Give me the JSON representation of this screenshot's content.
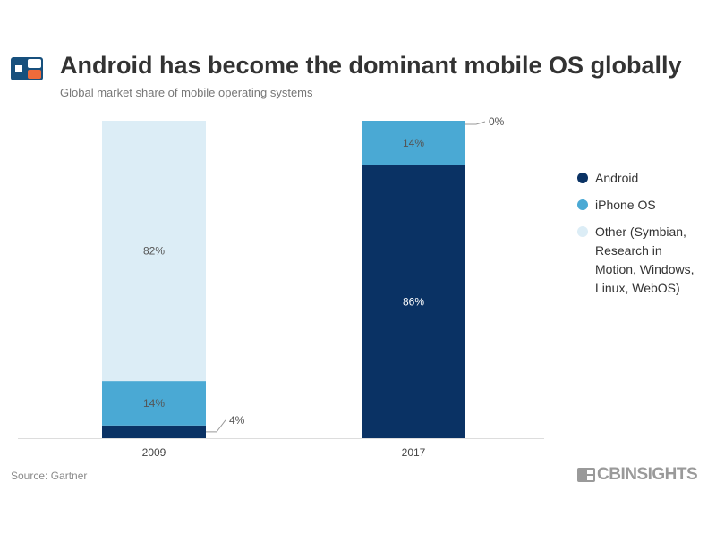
{
  "title": "Android has become the dominant mobile OS globally",
  "subtitle": "Global market share of mobile operating systems",
  "source": "Source: Gartner",
  "brand": "CBINSIGHTS",
  "colors": {
    "android": "#0a3264",
    "iphone": "#4aa9d4",
    "other": "#dcedf6",
    "logo_blue": "#17507d",
    "logo_orange": "#ef6b3b"
  },
  "chart_data": {
    "type": "bar",
    "stacked": true,
    "categories": [
      "2009",
      "2017"
    ],
    "series": [
      {
        "name": "Android",
        "key": "android",
        "values": [
          4,
          86
        ]
      },
      {
        "name": "iPhone OS",
        "key": "iphone",
        "values": [
          14,
          14
        ]
      },
      {
        "name": "Other (Symbian, Research in Motion, Windows, Linux, WebOS)",
        "key": "other",
        "values": [
          82,
          0
        ]
      }
    ],
    "labels": [
      [
        "4%",
        "14%",
        "82%"
      ],
      [
        "86%",
        "14%",
        "0%"
      ]
    ],
    "legend": [
      {
        "key": "android",
        "lines": [
          "Android"
        ]
      },
      {
        "key": "iphone",
        "lines": [
          "iPhone OS"
        ]
      },
      {
        "key": "other",
        "lines": [
          "Other (Symbian,",
          "Research in",
          "Motion, Windows,",
          "Linux, WebOS)"
        ]
      }
    ],
    "ylim": [
      0,
      100
    ],
    "legend_position": "right"
  }
}
